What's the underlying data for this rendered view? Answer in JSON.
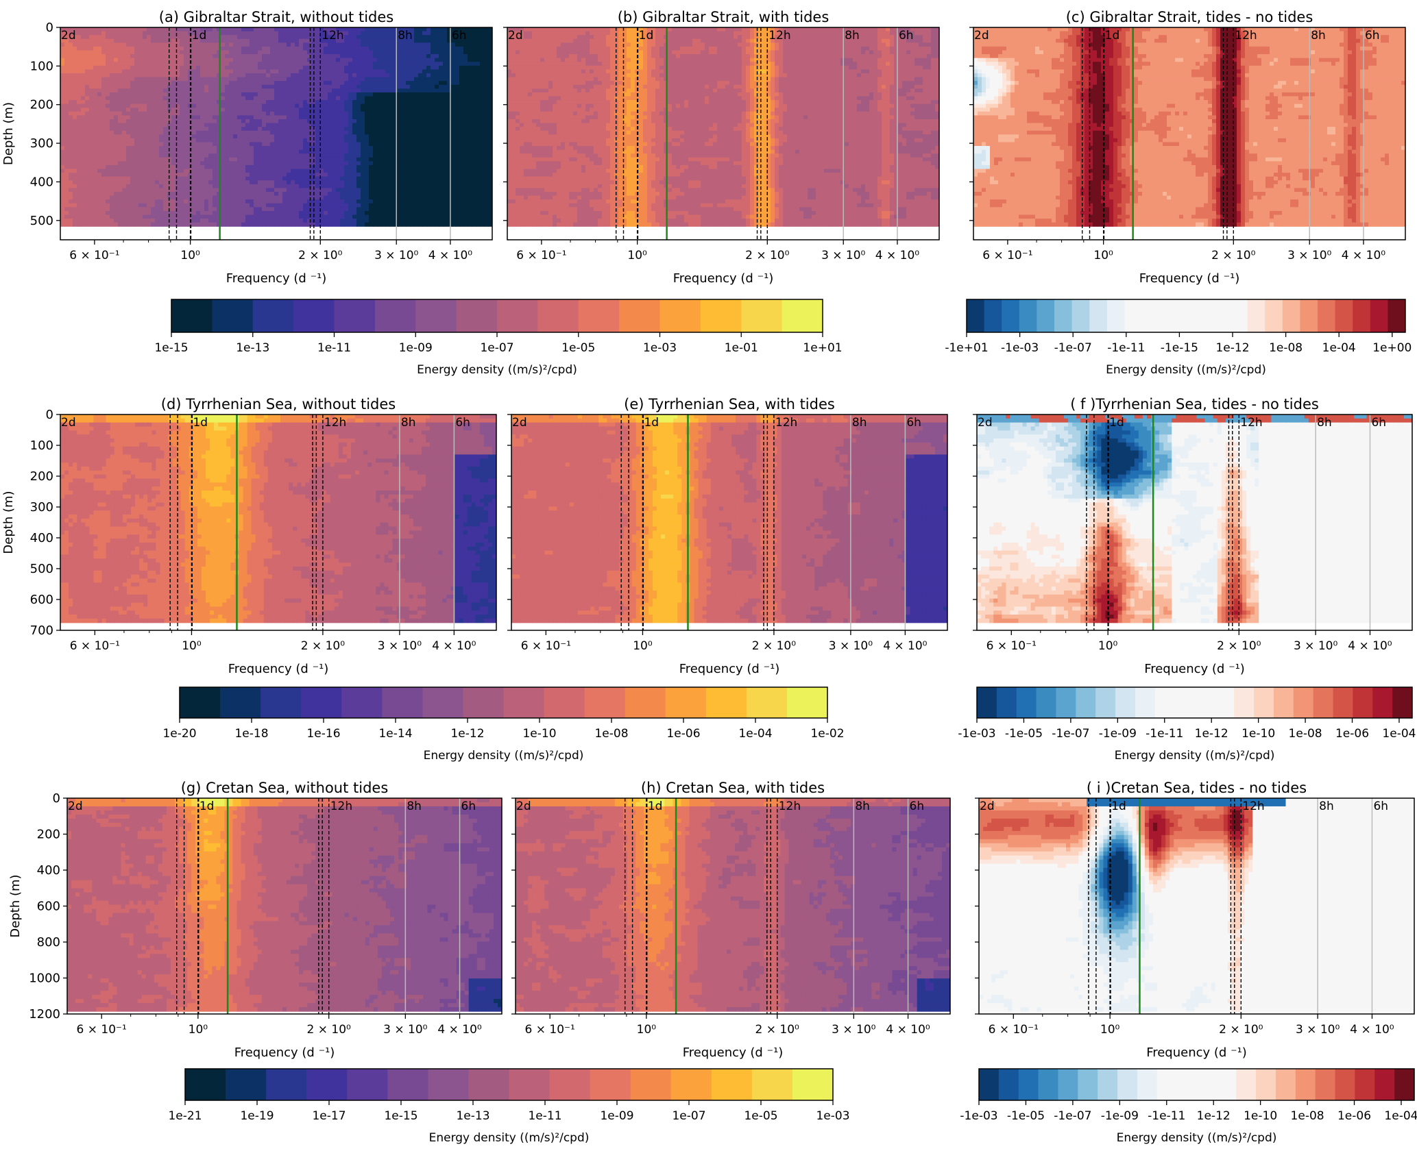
{
  "chart_data": [
    {
      "type": "heatmap",
      "panel": "a",
      "title": "(a) Gibraltar Strait, without tides",
      "region": "Gibraltar Strait",
      "variant": "without tides",
      "xlabel": "Frequency (d ⁻¹)",
      "ylabel": "Depth (m)",
      "xscale": "log",
      "xlim": [
        0.5,
        5
      ],
      "ylim": [
        550,
        0
      ],
      "data_max_depth": 515,
      "yticks": [
        0,
        100,
        200,
        300,
        400,
        500
      ],
      "xticks": [
        {
          "value": 0.6,
          "label": "6 × 10⁻¹"
        },
        {
          "value": 1,
          "label": "10⁰"
        },
        {
          "value": 2,
          "label": "2 × 10⁰"
        },
        {
          "value": 3,
          "label": "3 × 10⁰"
        },
        {
          "value": 4,
          "label": "4 × 10⁰"
        }
      ],
      "colormap": "sequential-thermal",
      "pattern": "surface-high, decaying with depth and frequency; very low below 170 m at high freq",
      "cbar_group": 0
    },
    {
      "type": "heatmap",
      "panel": "b",
      "title": "(b) Gibraltar Strait, with tides",
      "region": "Gibraltar Strait",
      "variant": "with tides",
      "xlabel": "Frequency (d ⁻¹)",
      "ylabel": "",
      "xscale": "log",
      "xlim": [
        0.5,
        5
      ],
      "ylim": [
        550,
        0
      ],
      "data_max_depth": 515,
      "yticks": [
        0,
        100,
        200,
        300,
        400,
        500
      ],
      "xticks": [
        {
          "value": 0.6,
          "label": "6 × 10⁻¹"
        },
        {
          "value": 1,
          "label": "10⁰"
        },
        {
          "value": 2,
          "label": "2 × 10⁰"
        },
        {
          "value": 3,
          "label": "3 × 10⁰"
        },
        {
          "value": 4,
          "label": "4 × 10⁰"
        }
      ],
      "colormap": "sequential-thermal",
      "pattern": "high energy at diurnal and semidiurnal bands across all depths",
      "cbar_group": 0
    },
    {
      "type": "heatmap",
      "panel": "c",
      "title": "(c) Gibraltar Strait, tides - no tides",
      "region": "Gibraltar Strait",
      "variant": "tides - no tides",
      "xlabel": "Frequency (d ⁻¹)",
      "ylabel": "",
      "xscale": "log",
      "xlim": [
        0.5,
        5
      ],
      "ylim": [
        550,
        0
      ],
      "data_max_depth": 515,
      "yticks": [
        0,
        100,
        200,
        300,
        400,
        500
      ],
      "xticks": [
        {
          "value": 0.6,
          "label": "6 × 10⁻¹"
        },
        {
          "value": 1,
          "label": "10⁰"
        },
        {
          "value": 2,
          "label": "2 × 10⁰"
        },
        {
          "value": 3,
          "label": "3 × 10⁰"
        },
        {
          "value": 4,
          "label": "4 × 10⁰"
        }
      ],
      "colormap": "diverging-RdBu",
      "pattern": "mostly positive; strong at diurnal and semidiurnal; small negative patches at low frequency near 100 m",
      "cbar_group": 1
    },
    {
      "type": "heatmap",
      "panel": "d",
      "title": "(d) Tyrrhenian Sea, without tides",
      "region": "Tyrrhenian Sea",
      "variant": "without tides",
      "xlabel": "Frequency (d ⁻¹)",
      "ylabel": "Depth (m)",
      "xscale": "log",
      "xlim": [
        0.5,
        5
      ],
      "ylim": [
        700,
        0
      ],
      "data_max_depth": 675,
      "yticks": [
        0,
        100,
        200,
        300,
        400,
        500,
        600,
        700
      ],
      "xticks": [
        {
          "value": 0.6,
          "label": "6 × 10⁻¹"
        },
        {
          "value": 1,
          "label": "10⁰"
        },
        {
          "value": 2,
          "label": "2 × 10⁰"
        },
        {
          "value": 3,
          "label": "3 × 10⁰"
        },
        {
          "value": 4,
          "label": "4 × 10⁰"
        }
      ],
      "colormap": "sequential-thermal",
      "pattern": "near-inertial maximum near 1.2 cpd in upper 250 m; decays at high frequencies",
      "cbar_group": 2
    },
    {
      "type": "heatmap",
      "panel": "e",
      "title": "(e) Tyrrhenian Sea, with tides",
      "region": "Tyrrhenian Sea",
      "variant": "with tides",
      "xlabel": "Frequency (d ⁻¹)",
      "ylabel": "",
      "xscale": "log",
      "xlim": [
        0.5,
        5
      ],
      "ylim": [
        700,
        0
      ],
      "data_max_depth": 675,
      "yticks": [
        0,
        100,
        200,
        300,
        400,
        500,
        600,
        700
      ],
      "xticks": [
        {
          "value": 0.6,
          "label": "6 × 10⁻¹"
        },
        {
          "value": 1,
          "label": "10⁰"
        },
        {
          "value": 2,
          "label": "2 × 10⁰"
        },
        {
          "value": 3,
          "label": "3 × 10⁰"
        },
        {
          "value": 4,
          "label": "4 × 10⁰"
        }
      ],
      "colormap": "sequential-thermal",
      "pattern": "near-inertial and diurnal maximum; semidiurnal band visible",
      "cbar_group": 2
    },
    {
      "type": "heatmap",
      "panel": "f",
      "title": "( f )Tyrrhenian Sea, tides - no tides",
      "region": "Tyrrhenian Sea",
      "variant": "tides - no tides",
      "xlabel": "Frequency (d ⁻¹)",
      "ylabel": "",
      "xscale": "log",
      "xlim": [
        0.5,
        5
      ],
      "ylim": [
        700,
        0
      ],
      "data_max_depth": 675,
      "yticks": [
        0,
        100,
        200,
        300,
        400,
        500,
        600,
        700
      ],
      "xticks": [
        {
          "value": 0.6,
          "label": "6 × 10⁻¹"
        },
        {
          "value": 1,
          "label": "10⁰"
        },
        {
          "value": 2,
          "label": "2 × 10⁰"
        },
        {
          "value": 3,
          "label": "3 × 10⁰"
        },
        {
          "value": 4,
          "label": "4 × 10⁰"
        }
      ],
      "colormap": "diverging-RdBu",
      "pattern": "negative (blue) in upper 300 m near inertial; positive at diurnal deep and semidiurnal; near zero above 2.2 cpd",
      "cbar_group": 3
    },
    {
      "type": "heatmap",
      "panel": "g",
      "title": "(g) Cretan Sea, without tides",
      "region": "Cretan Sea",
      "variant": "without tides",
      "xlabel": "Frequency (d ⁻¹)",
      "ylabel": "Depth (m)",
      "xscale": "log",
      "xlim": [
        0.5,
        5
      ],
      "ylim": [
        1200,
        0
      ],
      "data_max_depth": 1185,
      "yticks": [
        0,
        200,
        400,
        600,
        800,
        1000,
        1200
      ],
      "xticks": [
        {
          "value": 0.6,
          "label": "6 × 10⁻¹"
        },
        {
          "value": 1,
          "label": "10⁰"
        },
        {
          "value": 2,
          "label": "2 × 10⁰"
        },
        {
          "value": 3,
          "label": "3 × 10⁰"
        },
        {
          "value": 4,
          "label": "4 × 10⁰"
        }
      ],
      "colormap": "sequential-thermal",
      "pattern": "near-inertial maximum between 1.0-1.2 cpd down to 600 m",
      "cbar_group": 4
    },
    {
      "type": "heatmap",
      "panel": "h",
      "title": "(h) Cretan Sea, with tides",
      "region": "Cretan Sea",
      "variant": "with tides",
      "xlabel": "Frequency (d ⁻¹)",
      "ylabel": "",
      "xscale": "log",
      "xlim": [
        0.5,
        5
      ],
      "ylim": [
        1200,
        0
      ],
      "data_max_depth": 1185,
      "yticks": [
        0,
        200,
        400,
        600,
        800,
        1000,
        1200
      ],
      "xticks": [
        {
          "value": 0.6,
          "label": "6 × 10⁻¹"
        },
        {
          "value": 1,
          "label": "10⁰"
        },
        {
          "value": 2,
          "label": "2 × 10⁰"
        },
        {
          "value": 3,
          "label": "3 × 10⁰"
        },
        {
          "value": 4,
          "label": "4 × 10⁰"
        }
      ],
      "colormap": "sequential-thermal",
      "pattern": "near-inertial/diurnal maximum; semidiurnal band",
      "cbar_group": 4
    },
    {
      "type": "heatmap",
      "panel": "i",
      "title": "( i )Cretan Sea, tides - no tides",
      "region": "Cretan Sea",
      "variant": "tides - no tides",
      "xlabel": "Frequency (d ⁻¹)",
      "ylabel": "",
      "xscale": "log",
      "xlim": [
        0.5,
        5
      ],
      "ylim": [
        1200,
        0
      ],
      "data_max_depth": 1185,
      "yticks": [
        0,
        200,
        400,
        600,
        800,
        1000,
        1200
      ],
      "xticks": [
        {
          "value": 0.6,
          "label": "6 × 10⁻¹"
        },
        {
          "value": 1,
          "label": "10⁰"
        },
        {
          "value": 2,
          "label": "2 × 10⁰"
        },
        {
          "value": 3,
          "label": "3 × 10⁰"
        },
        {
          "value": 4,
          "label": "4 × 10⁰"
        }
      ],
      "colormap": "diverging-RdBu",
      "pattern": "positive upper-left low freq; negative wedge at 0.9-1.15 cpd down to 800 m; positive semidiurnal band",
      "cbar_group": 5
    }
  ],
  "period_markers": [
    {
      "label": "2d",
      "freq": 0.5
    },
    {
      "label": "1d",
      "freq": 1.0
    },
    {
      "label": "12h",
      "freq": 2.0
    },
    {
      "label": "8h",
      "freq": 3.0
    },
    {
      "label": "6h",
      "freq": 4.0
    }
  ],
  "tidal_lines": {
    "style": "dashed",
    "color": "#000000",
    "freqs": [
      0.893,
      0.929,
      1.0,
      1.003,
      1.895,
      1.932,
      2.0
    ]
  },
  "gray_lines": {
    "color": "#bbbbbb",
    "freqs": [
      3.0,
      4.0
    ]
  },
  "inertial_lines": {
    "color": "#1a8a1a",
    "freq_by_row": [
      1.17,
      1.27,
      1.17
    ]
  },
  "colorbars": [
    {
      "label": "Energy density ((m/s)²/cpd)",
      "ticks": [
        "1e-15",
        "1e-13",
        "1e-11",
        "1e-09",
        "1e-07",
        "1e-05",
        "1e-03",
        "1e-01",
        "1e+01"
      ],
      "colormap": "sequential-thermal",
      "levels": 16
    },
    {
      "label": "Energy density ((m/s)²/cpd)",
      "ticks": [
        "-1e+01",
        "-1e-03",
        "-1e-07",
        "-1e-11",
        "-1e-15",
        "1e-12",
        "1e-08",
        "1e-04",
        "1e+00"
      ],
      "colormap": "diverging-RdBu",
      "levels": 33
    },
    {
      "label": "Energy density ((m/s)²/cpd)",
      "ticks": [
        "1e-20",
        "1e-18",
        "1e-16",
        "1e-14",
        "1e-12",
        "1e-10",
        "1e-08",
        "1e-06",
        "1e-04",
        "1e-02"
      ],
      "colormap": "sequential-thermal",
      "levels": 18
    },
    {
      "label": "Energy density ((m/s)²/cpd)",
      "ticks": [
        "-1e-03",
        "-1e-05",
        "-1e-07",
        "-1e-09",
        "-1e-11",
        "1e-12",
        "1e-10",
        "1e-08",
        "1e-06",
        "1e-04"
      ],
      "colormap": "diverging-RdBu",
      "levels": 19
    },
    {
      "label": "Energy density ((m/s)²/cpd)",
      "ticks": [
        "1e-21",
        "1e-19",
        "1e-17",
        "1e-15",
        "1e-13",
        "1e-11",
        "1e-09",
        "1e-07",
        "1e-05",
        "1e-03"
      ],
      "colormap": "sequential-thermal",
      "levels": 18
    },
    {
      "label": "Energy density ((m/s)²/cpd)",
      "ticks": [
        "-1e-03",
        "-1e-05",
        "-1e-07",
        "-1e-09",
        "-1e-11",
        "1e-12",
        "1e-10",
        "1e-08",
        "1e-06",
        "1e-04"
      ],
      "colormap": "diverging-RdBu",
      "levels": 19
    }
  ],
  "colors": {
    "thermal": [
      "#03263a",
      "#0c3265",
      "#2a3791",
      "#41339e",
      "#5b3c9a",
      "#774a93",
      "#8d5590",
      "#a45b81",
      "#bb627a",
      "#d1696f",
      "#e57663",
      "#f38a4b",
      "#fba23c",
      "#fdbc33",
      "#f7d64c",
      "#ecf25a"
    ],
    "rdbu_neg": [
      "#0b3a6e",
      "#16569a",
      "#2270b4",
      "#3a8cc0",
      "#5ba4cf",
      "#86bfdc",
      "#aed3e7",
      "#d2e5f0",
      "#e9f1f6"
    ],
    "rdbu_zero": "#f6f6f6",
    "rdbu_pos": [
      "#fbe7dd",
      "#fcd3be",
      "#f8b598",
      "#f29575",
      "#e4745c",
      "#d45448",
      "#c03438",
      "#a8182e",
      "#6f0f1e"
    ]
  }
}
